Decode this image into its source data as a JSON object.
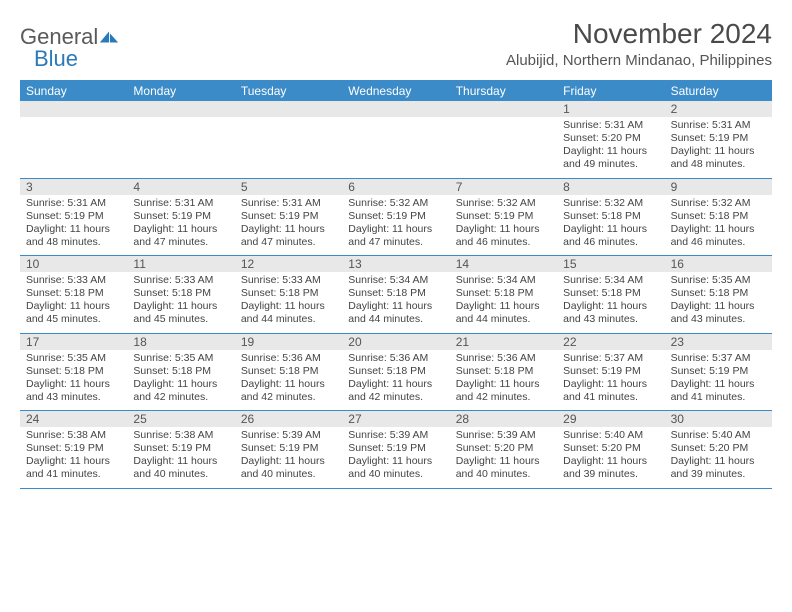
{
  "logo": {
    "general": "General",
    "blue": "Blue",
    "shape_color": "#2a7ab9",
    "gray_color": "#5a5a5a"
  },
  "header": {
    "month_title": "November 2024",
    "location": "Alubijid, Northern Mindanao, Philippines"
  },
  "colors": {
    "header_bg": "#3b8bc8",
    "header_fg": "#ffffff",
    "daynum_bg": "#e8e8e8",
    "border": "#3b8bc8",
    "text": "#444444"
  },
  "days_of_week": [
    "Sunday",
    "Monday",
    "Tuesday",
    "Wednesday",
    "Thursday",
    "Friday",
    "Saturday"
  ],
  "weeks": [
    [
      {
        "n": "",
        "sr": "",
        "ss": "",
        "dl": ""
      },
      {
        "n": "",
        "sr": "",
        "ss": "",
        "dl": ""
      },
      {
        "n": "",
        "sr": "",
        "ss": "",
        "dl": ""
      },
      {
        "n": "",
        "sr": "",
        "ss": "",
        "dl": ""
      },
      {
        "n": "",
        "sr": "",
        "ss": "",
        "dl": ""
      },
      {
        "n": "1",
        "sr": "Sunrise: 5:31 AM",
        "ss": "Sunset: 5:20 PM",
        "dl": "Daylight: 11 hours and 49 minutes."
      },
      {
        "n": "2",
        "sr": "Sunrise: 5:31 AM",
        "ss": "Sunset: 5:19 PM",
        "dl": "Daylight: 11 hours and 48 minutes."
      }
    ],
    [
      {
        "n": "3",
        "sr": "Sunrise: 5:31 AM",
        "ss": "Sunset: 5:19 PM",
        "dl": "Daylight: 11 hours and 48 minutes."
      },
      {
        "n": "4",
        "sr": "Sunrise: 5:31 AM",
        "ss": "Sunset: 5:19 PM",
        "dl": "Daylight: 11 hours and 47 minutes."
      },
      {
        "n": "5",
        "sr": "Sunrise: 5:31 AM",
        "ss": "Sunset: 5:19 PM",
        "dl": "Daylight: 11 hours and 47 minutes."
      },
      {
        "n": "6",
        "sr": "Sunrise: 5:32 AM",
        "ss": "Sunset: 5:19 PM",
        "dl": "Daylight: 11 hours and 47 minutes."
      },
      {
        "n": "7",
        "sr": "Sunrise: 5:32 AM",
        "ss": "Sunset: 5:19 PM",
        "dl": "Daylight: 11 hours and 46 minutes."
      },
      {
        "n": "8",
        "sr": "Sunrise: 5:32 AM",
        "ss": "Sunset: 5:18 PM",
        "dl": "Daylight: 11 hours and 46 minutes."
      },
      {
        "n": "9",
        "sr": "Sunrise: 5:32 AM",
        "ss": "Sunset: 5:18 PM",
        "dl": "Daylight: 11 hours and 46 minutes."
      }
    ],
    [
      {
        "n": "10",
        "sr": "Sunrise: 5:33 AM",
        "ss": "Sunset: 5:18 PM",
        "dl": "Daylight: 11 hours and 45 minutes."
      },
      {
        "n": "11",
        "sr": "Sunrise: 5:33 AM",
        "ss": "Sunset: 5:18 PM",
        "dl": "Daylight: 11 hours and 45 minutes."
      },
      {
        "n": "12",
        "sr": "Sunrise: 5:33 AM",
        "ss": "Sunset: 5:18 PM",
        "dl": "Daylight: 11 hours and 44 minutes."
      },
      {
        "n": "13",
        "sr": "Sunrise: 5:34 AM",
        "ss": "Sunset: 5:18 PM",
        "dl": "Daylight: 11 hours and 44 minutes."
      },
      {
        "n": "14",
        "sr": "Sunrise: 5:34 AM",
        "ss": "Sunset: 5:18 PM",
        "dl": "Daylight: 11 hours and 44 minutes."
      },
      {
        "n": "15",
        "sr": "Sunrise: 5:34 AM",
        "ss": "Sunset: 5:18 PM",
        "dl": "Daylight: 11 hours and 43 minutes."
      },
      {
        "n": "16",
        "sr": "Sunrise: 5:35 AM",
        "ss": "Sunset: 5:18 PM",
        "dl": "Daylight: 11 hours and 43 minutes."
      }
    ],
    [
      {
        "n": "17",
        "sr": "Sunrise: 5:35 AM",
        "ss": "Sunset: 5:18 PM",
        "dl": "Daylight: 11 hours and 43 minutes."
      },
      {
        "n": "18",
        "sr": "Sunrise: 5:35 AM",
        "ss": "Sunset: 5:18 PM",
        "dl": "Daylight: 11 hours and 42 minutes."
      },
      {
        "n": "19",
        "sr": "Sunrise: 5:36 AM",
        "ss": "Sunset: 5:18 PM",
        "dl": "Daylight: 11 hours and 42 minutes."
      },
      {
        "n": "20",
        "sr": "Sunrise: 5:36 AM",
        "ss": "Sunset: 5:18 PM",
        "dl": "Daylight: 11 hours and 42 minutes."
      },
      {
        "n": "21",
        "sr": "Sunrise: 5:36 AM",
        "ss": "Sunset: 5:18 PM",
        "dl": "Daylight: 11 hours and 42 minutes."
      },
      {
        "n": "22",
        "sr": "Sunrise: 5:37 AM",
        "ss": "Sunset: 5:19 PM",
        "dl": "Daylight: 11 hours and 41 minutes."
      },
      {
        "n": "23",
        "sr": "Sunrise: 5:37 AM",
        "ss": "Sunset: 5:19 PM",
        "dl": "Daylight: 11 hours and 41 minutes."
      }
    ],
    [
      {
        "n": "24",
        "sr": "Sunrise: 5:38 AM",
        "ss": "Sunset: 5:19 PM",
        "dl": "Daylight: 11 hours and 41 minutes."
      },
      {
        "n": "25",
        "sr": "Sunrise: 5:38 AM",
        "ss": "Sunset: 5:19 PM",
        "dl": "Daylight: 11 hours and 40 minutes."
      },
      {
        "n": "26",
        "sr": "Sunrise: 5:39 AM",
        "ss": "Sunset: 5:19 PM",
        "dl": "Daylight: 11 hours and 40 minutes."
      },
      {
        "n": "27",
        "sr": "Sunrise: 5:39 AM",
        "ss": "Sunset: 5:19 PM",
        "dl": "Daylight: 11 hours and 40 minutes."
      },
      {
        "n": "28",
        "sr": "Sunrise: 5:39 AM",
        "ss": "Sunset: 5:20 PM",
        "dl": "Daylight: 11 hours and 40 minutes."
      },
      {
        "n": "29",
        "sr": "Sunrise: 5:40 AM",
        "ss": "Sunset: 5:20 PM",
        "dl": "Daylight: 11 hours and 39 minutes."
      },
      {
        "n": "30",
        "sr": "Sunrise: 5:40 AM",
        "ss": "Sunset: 5:20 PM",
        "dl": "Daylight: 11 hours and 39 minutes."
      }
    ]
  ]
}
